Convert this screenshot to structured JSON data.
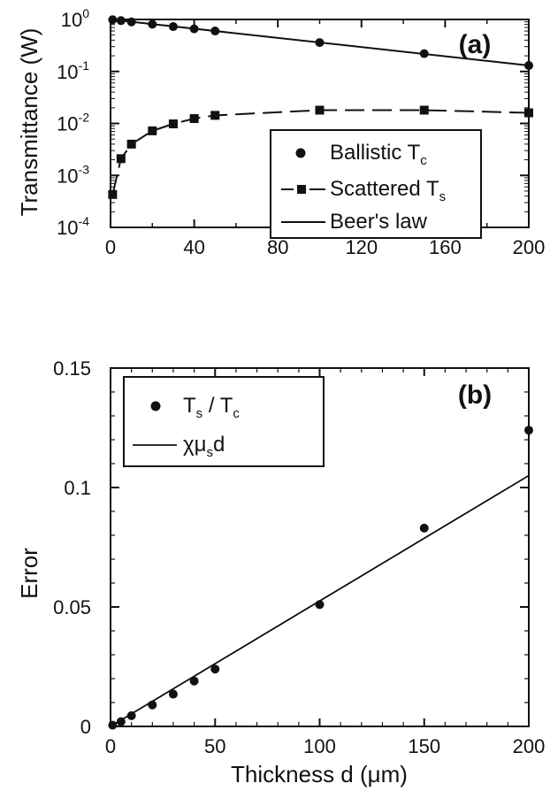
{
  "chart_data": [
    {
      "panel_label": "(a)",
      "type": "line",
      "xlabel": "",
      "ylabel": "Transmittance (W)",
      "xlim": [
        0,
        200
      ],
      "ylim": [
        0.0001,
        1
      ],
      "yscale": "log",
      "x_ticks": [
        "0",
        "40",
        "80",
        "120",
        "160",
        "200"
      ],
      "x_tick_values": [
        0,
        40,
        80,
        120,
        160,
        200
      ],
      "y_ticks": [
        {
          "value": 1,
          "base": "10",
          "exp": "0"
        },
        {
          "value": 0.1,
          "base": "10",
          "exp": "-1"
        },
        {
          "value": 0.01,
          "base": "10",
          "exp": "-2"
        },
        {
          "value": 0.001,
          "base": "10",
          "exp": "-3"
        },
        {
          "value": 0.0001,
          "base": "10",
          "exp": "-4"
        }
      ],
      "legend_position": "lower-right",
      "series": [
        {
          "name": "Ballistic T",
          "name_sub": "c",
          "style": "circle-markers",
          "x": [
            1,
            5,
            10,
            20,
            30,
            40,
            50,
            100,
            150,
            200
          ],
          "y": [
            0.99,
            0.95,
            0.9,
            0.81,
            0.73,
            0.66,
            0.6,
            0.36,
            0.22,
            0.13
          ]
        },
        {
          "name": "Scattered T",
          "name_sub": "s",
          "style": "square-markers-dashed",
          "x": [
            1,
            5,
            10,
            20,
            30,
            40,
            50,
            100,
            150,
            200
          ],
          "y": [
            0.00043,
            0.0021,
            0.004,
            0.0072,
            0.0098,
            0.0124,
            0.0143,
            0.018,
            0.018,
            0.016
          ]
        },
        {
          "name": "Beer's law",
          "style": "solid-line",
          "x": [
            0,
            200
          ],
          "y": [
            1.0,
            0.13
          ]
        }
      ]
    },
    {
      "panel_label": "(b)",
      "type": "scatter",
      "xlabel": "Thickness d (μm)",
      "ylabel": "Error",
      "xlim": [
        0,
        200
      ],
      "ylim": [
        0,
        0.15
      ],
      "x_ticks": [
        "0",
        "50",
        "100",
        "150",
        "200"
      ],
      "x_tick_values": [
        0,
        50,
        100,
        150,
        200
      ],
      "y_ticks": [
        "0",
        "0.05",
        "0.1",
        "0.15"
      ],
      "y_tick_values": [
        0,
        0.05,
        0.1,
        0.15
      ],
      "legend_position": "top-left",
      "series": [
        {
          "name_parts": [
            "T",
            "s",
            " / T",
            "c"
          ],
          "style": "circle-markers",
          "x": [
            1,
            5,
            10,
            20,
            30,
            40,
            50,
            100,
            150,
            200
          ],
          "y": [
            0.0005,
            0.002,
            0.0045,
            0.009,
            0.0135,
            0.019,
            0.024,
            0.051,
            0.083,
            0.124
          ]
        },
        {
          "name_parts": [
            "χμ",
            "s",
            "d"
          ],
          "style": "solid-line",
          "x": [
            0,
            200
          ],
          "y": [
            0,
            0.105
          ]
        }
      ]
    }
  ]
}
